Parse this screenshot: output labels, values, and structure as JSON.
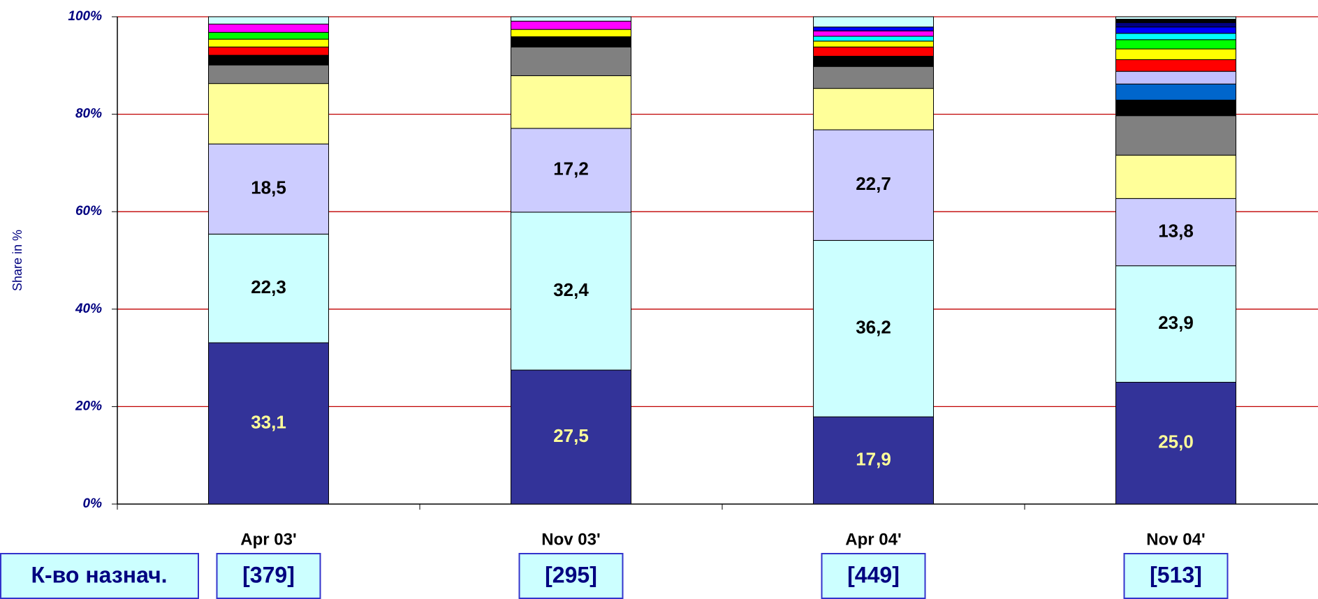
{
  "chart_data": {
    "type": "stacked_bar",
    "y_label": "Share in %",
    "categories": [
      "Apr 03'",
      "Nov 03'",
      "Apr 04'",
      "Nov 04'"
    ],
    "ylim": [
      0,
      100
    ],
    "yticks": [
      {
        "value": 0,
        "label": "0%"
      },
      {
        "value": 20,
        "label": "20%"
      },
      {
        "value": 40,
        "label": "40%"
      },
      {
        "value": 60,
        "label": "60%"
      },
      {
        "value": 80,
        "label": "80%"
      },
      {
        "value": 100,
        "label": "100%"
      }
    ],
    "grid": true,
    "series": [
      {
        "color": "#333399",
        "label_color": "#ffff99",
        "values": [
          33.1,
          27.5,
          17.9,
          25.0
        ],
        "value_labels": [
          "33,1",
          "27,5",
          "17,9",
          "25,0"
        ]
      },
      {
        "color": "#ccffff",
        "label_color": "#000000",
        "values": [
          22.3,
          32.4,
          36.2,
          23.9
        ],
        "value_labels": [
          "22,3",
          "32,4",
          "36,2",
          "23,9"
        ]
      },
      {
        "color": "#ccccff",
        "label_color": "#000000",
        "values": [
          18.5,
          17.2,
          22.7,
          13.8
        ],
        "value_labels": [
          "18,5",
          "17,2",
          "22,7",
          "13,8"
        ]
      },
      {
        "color": "#ffff99",
        "values": [
          12.4,
          10.8,
          8.5,
          8.9
        ]
      },
      {
        "color": "#808080",
        "values": [
          3.8,
          5.9,
          4.5,
          8.1
        ]
      },
      {
        "color": "#000000",
        "values": [
          2.0,
          2.1,
          2.1,
          3.2
        ]
      },
      {
        "color": "#0066cc",
        "values": [
          null,
          null,
          null,
          3.3
        ]
      },
      {
        "color": "#c0c0ff",
        "values": [
          null,
          null,
          null,
          2.6
        ]
      },
      {
        "color": "#ff0000",
        "values": [
          1.7,
          null,
          1.9,
          2.4
        ]
      },
      {
        "color": "#ffff00",
        "values": [
          1.6,
          1.5,
          1.2,
          2.2
        ]
      },
      {
        "color": "#00ff00",
        "values": [
          1.4,
          null,
          null,
          1.9
        ]
      },
      {
        "color": "#00ffff",
        "values": [
          null,
          null,
          1.0,
          1.3
        ]
      },
      {
        "color": "#ff00ff",
        "values": [
          1.7,
          1.7,
          1.1,
          null
        ]
      },
      {
        "color": "#0000ff",
        "values": [
          null,
          null,
          0.8,
          1.3
        ]
      },
      {
        "color": "#000080",
        "values": [
          null,
          null,
          null,
          0.9
        ]
      },
      {
        "color": "#000000",
        "values": [
          null,
          null,
          null,
          0.7
        ]
      },
      {
        "color": "#ccffff",
        "values": [
          1.5,
          0.9,
          2.1,
          0.5
        ]
      }
    ],
    "count_label": "К-во назнач.",
    "counts": [
      "[379]",
      "[295]",
      "[449]",
      "[513]"
    ]
  }
}
